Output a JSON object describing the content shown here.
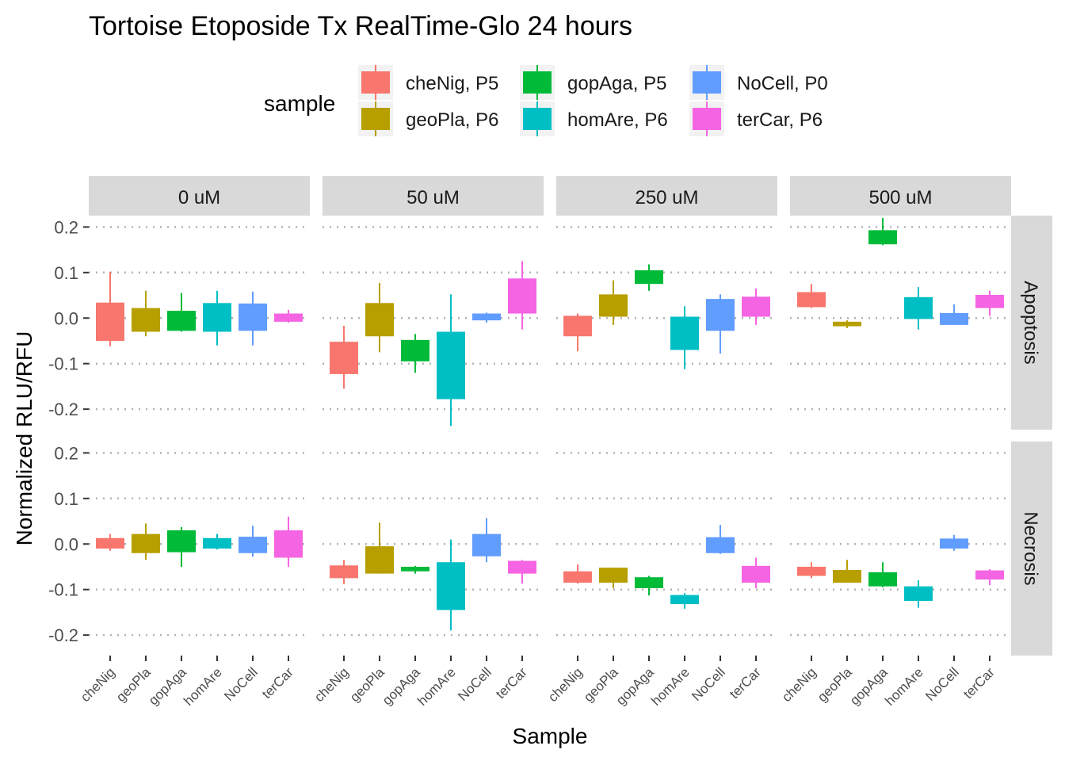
{
  "chart_data": {
    "type": "boxplot",
    "title": "Tortoise Etoposide Tx RealTime-Glo 24 hours",
    "xlabel": "Sample",
    "ylabel": "Normalized RLU/RFU",
    "legend_title": "sample",
    "legend_position": "top",
    "legend": [
      {
        "label": "cheNig, P5",
        "color": "#F8766D"
      },
      {
        "label": "geoPla, P6",
        "color": "#B79F00"
      },
      {
        "label": "gopAga, P5",
        "color": "#00BA38"
      },
      {
        "label": "homAre, P6",
        "color": "#00BFC4"
      },
      {
        "label": "NoCell, P0",
        "color": "#619CFF"
      },
      {
        "label": "terCar, P6",
        "color": "#F564E3"
      }
    ],
    "categories": [
      "cheNig",
      "geoPla",
      "gopAga",
      "homAre",
      "NoCell",
      "terCar"
    ],
    "column_facets": [
      "0 uM",
      "50 uM",
      "250 uM",
      "500 uM"
    ],
    "row_facets": [
      "Apoptosis",
      "Necrosis"
    ],
    "y_ticks": [
      0.2,
      0.1,
      0.0,
      -0.1,
      -0.2
    ],
    "y_tick_labels": [
      "0.2",
      "0.1",
      "0.0",
      "-0.1",
      "-0.2"
    ],
    "ylim": [
      -0.245,
      0.225
    ],
    "grid": "dotted horizontal",
    "boxes": {
      "Apoptosis": {
        "0 uM": [
          [
            -0.062,
            -0.05,
            0.034,
            0.102
          ],
          [
            -0.04,
            -0.03,
            0.022,
            0.06
          ],
          [
            -0.03,
            -0.028,
            0.016,
            0.055
          ],
          [
            -0.06,
            -0.03,
            0.033,
            0.06
          ],
          [
            -0.06,
            -0.028,
            0.032,
            0.058
          ],
          [
            -0.01,
            -0.008,
            0.01,
            0.018
          ]
        ],
        "50 uM": [
          [
            -0.155,
            -0.123,
            -0.052,
            -0.017
          ],
          [
            -0.075,
            -0.04,
            0.033,
            0.077
          ],
          [
            -0.12,
            -0.095,
            -0.048,
            -0.035
          ],
          [
            -0.237,
            -0.178,
            -0.03,
            0.052
          ],
          [
            -0.01,
            -0.005,
            0.01,
            0.012
          ],
          [
            -0.025,
            0.01,
            0.087,
            0.125
          ]
        ],
        "250 uM": [
          [
            -0.073,
            -0.04,
            0.005,
            0.01
          ],
          [
            -0.015,
            0.003,
            0.052,
            0.083
          ],
          [
            0.06,
            0.075,
            0.105,
            0.118
          ],
          [
            -0.112,
            -0.07,
            0.003,
            0.026
          ],
          [
            -0.078,
            -0.028,
            0.042,
            0.052
          ],
          [
            -0.015,
            0.003,
            0.047,
            0.065
          ]
        ],
        "500 uM": [
          [
            0.022,
            0.024,
            0.057,
            0.075
          ],
          [
            -0.022,
            -0.018,
            -0.008,
            -0.005
          ],
          [
            0.16,
            0.162,
            0.193,
            0.22
          ],
          [
            -0.025,
            -0.002,
            0.046,
            0.068
          ],
          [
            -0.015,
            -0.015,
            0.011,
            0.03
          ],
          [
            0.005,
            0.022,
            0.051,
            0.06
          ]
        ]
      },
      "Necrosis": {
        "0 uM": [
          [
            -0.015,
            -0.01,
            0.013,
            0.022
          ],
          [
            -0.035,
            -0.02,
            0.022,
            0.045
          ],
          [
            -0.05,
            -0.018,
            0.03,
            0.037
          ],
          [
            -0.012,
            -0.01,
            0.013,
            0.022
          ],
          [
            -0.028,
            -0.02,
            0.016,
            0.04
          ],
          [
            -0.05,
            -0.03,
            0.03,
            0.06
          ]
        ],
        "50 uM": [
          [
            -0.088,
            -0.075,
            -0.047,
            -0.035
          ],
          [
            -0.065,
            -0.065,
            -0.005,
            0.047
          ],
          [
            -0.065,
            -0.06,
            -0.05,
            -0.048
          ],
          [
            -0.19,
            -0.145,
            -0.04,
            0.01
          ],
          [
            -0.04,
            -0.027,
            0.022,
            0.057
          ],
          [
            -0.087,
            -0.065,
            -0.037,
            -0.035
          ]
        ],
        "250 uM": [
          [
            -0.087,
            -0.085,
            -0.06,
            -0.045
          ],
          [
            -0.097,
            -0.085,
            -0.052,
            -0.052
          ],
          [
            -0.113,
            -0.097,
            -0.073,
            -0.07
          ],
          [
            -0.142,
            -0.132,
            -0.112,
            -0.108
          ],
          [
            -0.022,
            -0.02,
            0.015,
            0.042
          ],
          [
            -0.097,
            -0.085,
            -0.048,
            -0.03
          ]
        ],
        "500 uM": [
          [
            -0.075,
            -0.07,
            -0.05,
            -0.04
          ],
          [
            -0.085,
            -0.085,
            -0.057,
            -0.035
          ],
          [
            -0.095,
            -0.093,
            -0.062,
            -0.04
          ],
          [
            -0.14,
            -0.125,
            -0.093,
            -0.08
          ],
          [
            -0.015,
            -0.01,
            0.012,
            0.02
          ],
          [
            -0.09,
            -0.078,
            -0.058,
            -0.055
          ]
        ]
      }
    }
  }
}
